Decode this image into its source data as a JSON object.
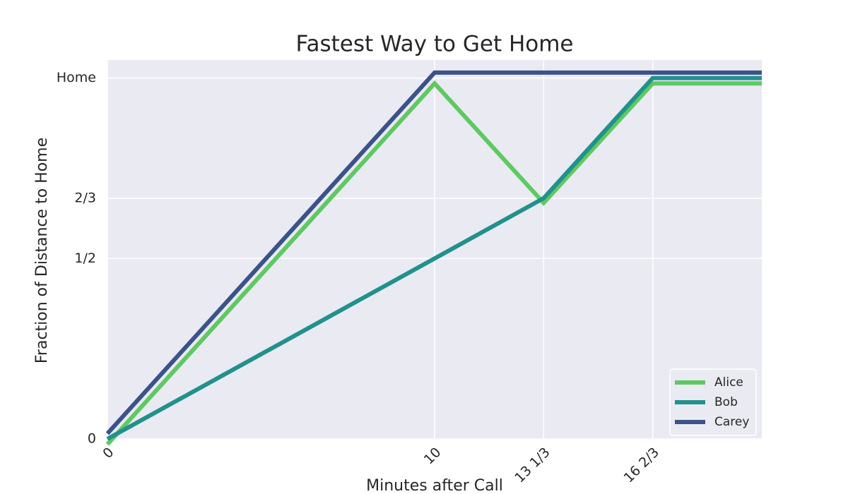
{
  "chart_data": {
    "type": "line",
    "title": "Fastest Way to Get Home",
    "xlabel": "Minutes after Call",
    "ylabel": "Fraction of Distance to Home",
    "x": [
      0,
      10,
      13.333,
      16.667,
      20
    ],
    "series": [
      {
        "name": "Alice",
        "color": "#5ec962",
        "values": [
          -0.015,
          0.985,
          0.654,
          0.985,
          0.985
        ]
      },
      {
        "name": "Bob",
        "color": "#21918c",
        "values": [
          0,
          0.5,
          0.667,
          1,
          1
        ]
      },
      {
        "name": "Carey",
        "color": "#3b528b",
        "values": [
          0.015,
          1.015,
          1.015,
          1.015,
          1.015
        ]
      }
    ],
    "xlim": [
      0,
      20
    ],
    "ylim": [
      0,
      1.05
    ],
    "xticks": [
      0,
      10,
      {
        "value": 13.333,
        "label": "13 1/3"
      },
      {
        "value": 16.667,
        "label": "16 2/3"
      }
    ],
    "yticks": [
      0,
      {
        "value": 0.5,
        "label": "1/2"
      },
      {
        "value": 0.6667,
        "label": "2/3"
      },
      {
        "value": 1,
        "label": "Home"
      }
    ],
    "grid": true,
    "legend": "lower right"
  }
}
